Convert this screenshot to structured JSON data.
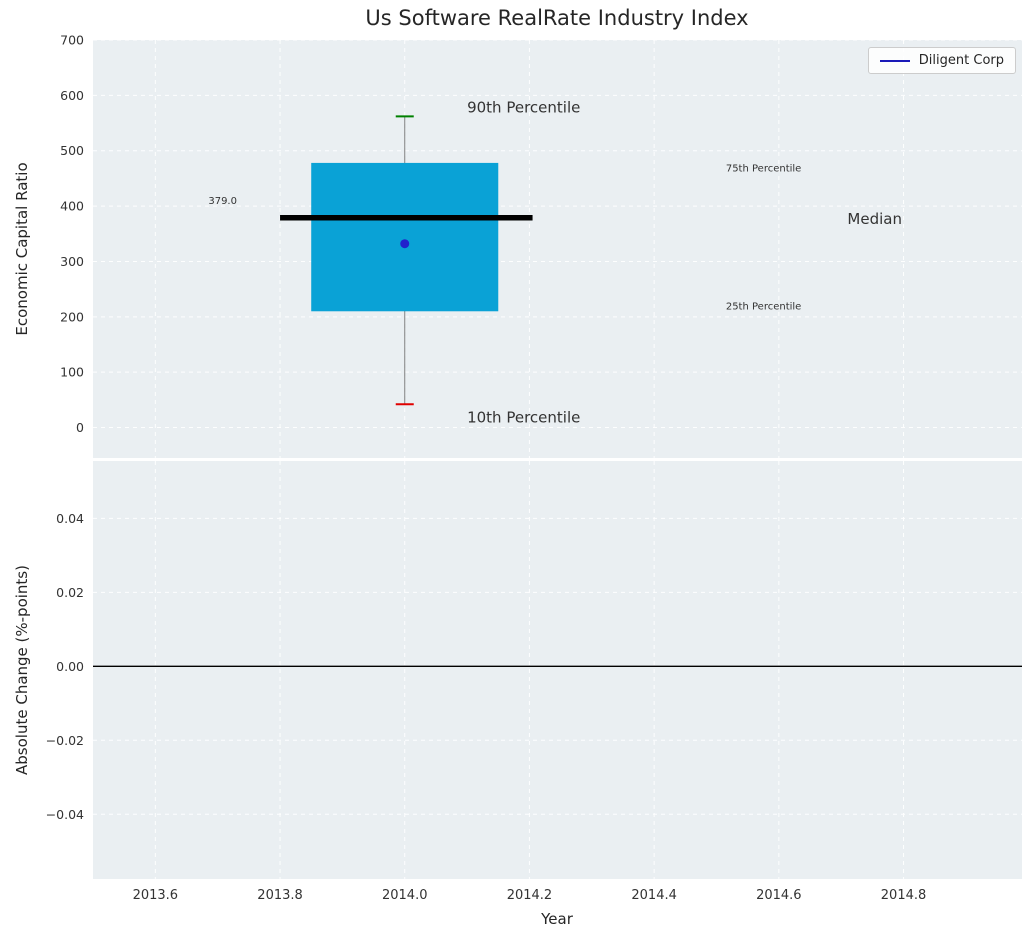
{
  "title": "Us Software RealRate Industry Index",
  "legend": {
    "label": "Diligent Corp",
    "line_color": "#1a1ab8"
  },
  "chart_data": [
    {
      "type": "box",
      "panel": "top",
      "title": "Us Software RealRate Industry Index",
      "ylabel": "Economic Capital Ratio",
      "ylim": [
        -55,
        700
      ],
      "yticks": [
        700,
        600,
        500,
        400,
        300,
        200,
        100,
        0
      ],
      "xlim": [
        2013.5,
        2014.99
      ],
      "xtick_values": [
        2013.6,
        2013.8,
        2014.0,
        2014.2,
        2014.4,
        2014.6,
        2014.8
      ],
      "xtick_labels": [
        "2013.6",
        "2013.8",
        "2014.0",
        "2014.2",
        "2014.4",
        "2014.6",
        "2014.8"
      ],
      "grid": true,
      "background": "#eaeff2",
      "box": {
        "x": 2014.0,
        "width": 0.3,
        "p10": 42,
        "q1": 210,
        "median": 379,
        "q3": 478,
        "p90": 562,
        "median_label": "379.0",
        "median_line_x1": 2013.8,
        "median_line_x2": 2014.205,
        "box_color": "#0aa2d6",
        "whisker_color": "#808080",
        "cap_top_color": "#008000",
        "cap_bottom_color": "#e00000",
        "median_color": "#000000"
      },
      "company_point": {
        "name": "Diligent Corp",
        "x": 2014.0,
        "y": 332,
        "color": "#2222cc"
      },
      "annotations": [
        {
          "text": "90th Percentile",
          "x": 2014.1,
          "y": 578,
          "color": "#111111",
          "size": 15,
          "anchor": "start"
        },
        {
          "text": "10th Percentile",
          "x": 2014.1,
          "y": 18,
          "color": "#111111",
          "size": 15,
          "anchor": "start"
        },
        {
          "text": "75th Percentile",
          "x": 2014.515,
          "y": 467,
          "color": "#1fa5c9",
          "size": 10,
          "anchor": "start"
        },
        {
          "text": "25th Percentile",
          "x": 2014.515,
          "y": 218,
          "color": "#1fa5c9",
          "size": 10,
          "anchor": "start"
        },
        {
          "text": "Median",
          "x": 2014.71,
          "y": 377,
          "color": "#111111",
          "size": 15,
          "anchor": "start"
        },
        {
          "text": "379.0",
          "x": 2013.685,
          "y": 408,
          "color": "#000000",
          "size": 10,
          "anchor": "start"
        }
      ]
    },
    {
      "type": "line",
      "panel": "bottom",
      "ylabel": "Absolute Change (%-points)",
      "xlabel": "Year",
      "ylim": [
        -0.0575,
        0.0555
      ],
      "ytick_values": [
        0.04,
        0.02,
        0.0,
        -0.02,
        -0.04
      ],
      "ytick_labels": [
        "0.04",
        "0.02",
        "0.00",
        "−0.02",
        "−0.04"
      ],
      "zero_line": 0.0,
      "grid": true,
      "background": "#eaeff2"
    }
  ]
}
